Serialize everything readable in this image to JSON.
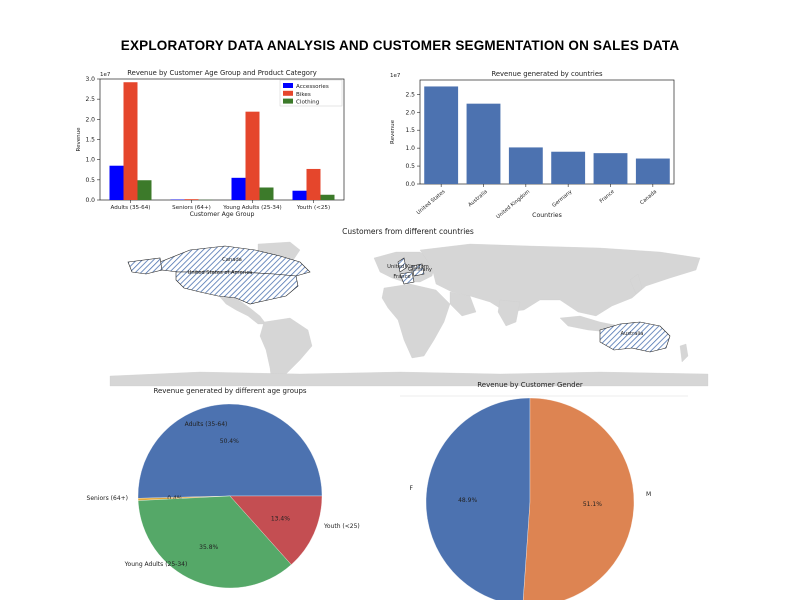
{
  "page": {
    "title": "EXPLORATORY DATA ANALYSIS AND CUSTOMER SEGMENTATION ON SALES DATA"
  },
  "colors": {
    "accessories": "#0000ff",
    "bikes": "#e5462c",
    "clothing": "#3c7a2a",
    "countries": "#4c72b0",
    "land": "#d6d6d6",
    "hatch": "#4c72b0",
    "pie_blue": "#4c72b0",
    "pie_orange": "#dd8452",
    "pie_green": "#55a868",
    "pie_red": "#c44e52"
  },
  "chart_data": [
    {
      "id": "age_category",
      "type": "bar",
      "title": "Revenue by Customer Age Group and Product Category",
      "xlabel": "Customer Age Group",
      "ylabel": "Revenue",
      "offset_label": "1e7",
      "categories": [
        "Adults (35-64)",
        "Seniors (64+)",
        "Young Adults (25-34)",
        "Youth (<25)"
      ],
      "series": [
        {
          "name": "Accessories",
          "values": [
            0.85,
            0.01,
            0.55,
            0.23
          ]
        },
        {
          "name": "Bikes",
          "values": [
            2.92,
            0.02,
            2.19,
            0.77
          ]
        },
        {
          "name": "Clothing",
          "values": [
            0.49,
            0.005,
            0.31,
            0.13
          ]
        }
      ],
      "ylim": [
        0,
        3.0
      ],
      "yticks": [
        "0.0",
        "0.5",
        "1.0",
        "1.5",
        "2.0",
        "2.5",
        "3.0"
      ],
      "legend": "top-right"
    },
    {
      "id": "countries",
      "type": "bar",
      "title": "Revenue generated by countries",
      "xlabel": "Countries",
      "ylabel": "Revenue",
      "offset_label": "1e7",
      "categories": [
        "United States",
        "Australia",
        "United Kingdom",
        "Germany",
        "France",
        "Canada"
      ],
      "values": [
        2.72,
        2.24,
        1.02,
        0.9,
        0.86,
        0.71
      ],
      "ylim": [
        0,
        2.9
      ],
      "yticks": [
        "0.0",
        "0.5",
        "1.0",
        "1.5",
        "2.0",
        "2.5"
      ]
    },
    {
      "id": "age_pie",
      "type": "pie",
      "title": "Revenue generated by different age groups",
      "labels": [
        "Adults (35-64)",
        "Seniors (64+)",
        "Young Adults (25-34)",
        "Youth (<25)"
      ],
      "values": [
        50.4,
        0.4,
        35.8,
        13.4
      ],
      "pct_labels": [
        "50.4%",
        "0.4%",
        "35.8%",
        "13.4%"
      ]
    },
    {
      "id": "gender_pie",
      "type": "pie",
      "title": "Revenue by Customer Gender",
      "labels": [
        "F",
        "M"
      ],
      "values": [
        48.9,
        51.1
      ],
      "pct_labels": [
        "48.9%",
        "51.1%"
      ]
    }
  ],
  "map": {
    "title": "Customers from different countries",
    "highlighted": [
      "United States of America",
      "Canada",
      "United Kingdom",
      "Germany",
      "France",
      "Australia"
    ],
    "labels": {
      "usa": "United States of America",
      "canada": "Canada",
      "uk": "United Kingdom",
      "germany": "Germany",
      "france": "France",
      "australia": "Australia"
    }
  }
}
